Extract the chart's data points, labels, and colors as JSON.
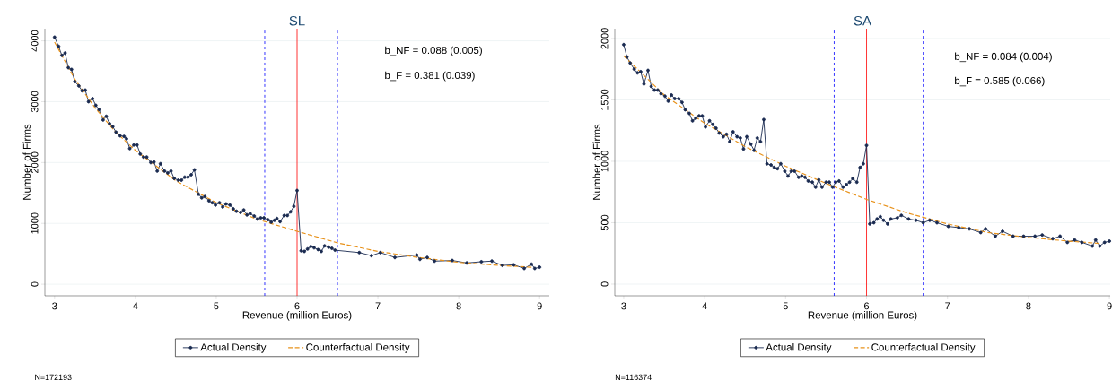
{
  "chart_data": [
    {
      "type": "line",
      "title": "SL",
      "xlabel": "Revenue (million Euros)",
      "ylabel": "Number of Firms",
      "xlim": [
        2.88,
        9.12
      ],
      "ylim": [
        -190,
        4200
      ],
      "xticks": [
        3,
        4,
        5,
        6,
        7,
        8,
        9
      ],
      "yticks": [
        0,
        1000,
        2000,
        3000,
        4000
      ],
      "grid": "y",
      "legend": "bottom",
      "series": [
        {
          "name": "Actual Density",
          "color": "#1a2a50",
          "marker": "circle",
          "line_style": "solid",
          "x": [
            3.0,
            3.05,
            3.09,
            3.13,
            3.17,
            3.21,
            3.25,
            3.3,
            3.34,
            3.38,
            3.42,
            3.47,
            3.51,
            3.55,
            3.6,
            3.64,
            3.68,
            3.72,
            3.76,
            3.81,
            3.86,
            3.89,
            3.93,
            3.98,
            4.02,
            4.06,
            4.1,
            4.14,
            4.19,
            4.23,
            4.27,
            4.31,
            4.36,
            4.4,
            4.44,
            4.48,
            4.53,
            4.57,
            4.61,
            4.65,
            4.69,
            4.73,
            4.78,
            4.82,
            4.86,
            4.91,
            4.95,
            4.99,
            5.04,
            5.08,
            5.12,
            5.17,
            5.21,
            5.25,
            5.3,
            5.34,
            5.38,
            5.42,
            5.47,
            5.51,
            5.55,
            5.59,
            5.64,
            5.68,
            5.72,
            5.75,
            5.79,
            5.84,
            5.88,
            5.92,
            5.96,
            6.0,
            6.05,
            6.09,
            6.13,
            6.17,
            6.21,
            6.26,
            6.3,
            6.34,
            6.39,
            6.43,
            6.47,
            6.77,
            6.92,
            7.03,
            7.21,
            7.48,
            7.52,
            7.61,
            7.7,
            7.92,
            8.1,
            8.28,
            8.41,
            8.54,
            8.68,
            8.81,
            8.9,
            8.94,
            9.0
          ],
          "values": [
            4060,
            3910,
            3760,
            3800,
            3560,
            3530,
            3330,
            3260,
            3180,
            3190,
            3000,
            3050,
            2940,
            2870,
            2700,
            2760,
            2640,
            2590,
            2500,
            2440,
            2430,
            2390,
            2230,
            2290,
            2290,
            2140,
            2090,
            2090,
            2000,
            2010,
            1860,
            1980,
            1860,
            1830,
            1860,
            1740,
            1710,
            1710,
            1760,
            1760,
            1800,
            1880,
            1480,
            1420,
            1440,
            1370,
            1340,
            1300,
            1340,
            1270,
            1320,
            1300,
            1240,
            1200,
            1180,
            1220,
            1140,
            1160,
            1120,
            1070,
            1090,
            1090,
            1060,
            1020,
            1050,
            1080,
            1030,
            1130,
            1130,
            1190,
            1280,
            1540,
            550,
            540,
            580,
            620,
            600,
            570,
            540,
            630,
            610,
            590,
            560,
            520,
            470,
            520,
            440,
            480,
            410,
            440,
            380,
            390,
            350,
            370,
            380,
            310,
            320,
            260,
            330,
            260,
            280
          ]
        },
        {
          "name": "Counterfactual Density",
          "color": "#e8921b",
          "marker": "none",
          "line_style": "dashed",
          "x": [
            3.0,
            3.25,
            3.5,
            3.75,
            4.0,
            4.5,
            5.0,
            5.5,
            6.0,
            6.5,
            7.0,
            7.5,
            8.0,
            8.5,
            8.9
          ],
          "values": [
            3980,
            3370,
            2900,
            2510,
            2200,
            1700,
            1340,
            1070,
            870,
            680,
            540,
            440,
            360,
            310,
            280
          ]
        }
      ],
      "ref_lines": [
        {
          "axis": "x",
          "value": 6,
          "color": "#ff0000",
          "line_style": "solid"
        },
        {
          "axis": "x",
          "value": 5.6,
          "color": "#0000ff",
          "line_style": "dashed"
        },
        {
          "axis": "x",
          "value": 6.5,
          "color": "#0000ff",
          "line_style": "dashed"
        }
      ],
      "annotations": [
        "b_NF = 0.088 (0.005)",
        "b_F  = 0.381 (0.039)",
        "N=172193"
      ]
    },
    {
      "type": "line",
      "title": "SA",
      "xlabel": "Revenue (million Euros)",
      "ylabel": "Number of Firms",
      "xlim": [
        2.89,
        9.01
      ],
      "ylim": [
        -95,
        2080
      ],
      "xticks": [
        3,
        4,
        5,
        6,
        7,
        8,
        9
      ],
      "yticks": [
        0,
        500,
        1000,
        1500,
        2000
      ],
      "grid": "y",
      "legend": "bottom",
      "series": [
        {
          "name": "Actual Density",
          "color": "#1a2a50",
          "marker": "circle",
          "line_style": "solid",
          "x": [
            3.0,
            3.04,
            3.08,
            3.13,
            3.17,
            3.21,
            3.25,
            3.3,
            3.34,
            3.38,
            3.42,
            3.46,
            3.51,
            3.55,
            3.59,
            3.63,
            3.68,
            3.72,
            3.76,
            3.81,
            3.85,
            3.89,
            3.93,
            3.97,
            4.01,
            4.06,
            4.1,
            4.14,
            4.18,
            4.23,
            4.27,
            4.31,
            4.35,
            4.4,
            4.44,
            4.48,
            4.52,
            4.57,
            4.61,
            4.65,
            4.69,
            4.73,
            4.77,
            4.82,
            4.86,
            4.9,
            4.94,
            4.99,
            5.03,
            5.07,
            5.11,
            5.16,
            5.2,
            5.24,
            5.28,
            5.33,
            5.37,
            5.41,
            5.45,
            5.5,
            5.54,
            5.58,
            5.62,
            5.66,
            5.71,
            5.75,
            5.79,
            5.83,
            5.88,
            5.92,
            5.96,
            6.0,
            6.04,
            6.09,
            6.13,
            6.17,
            6.21,
            6.26,
            6.3,
            6.38,
            6.43,
            6.52,
            6.61,
            6.7,
            6.78,
            6.87,
            7.01,
            7.14,
            7.27,
            7.41,
            7.47,
            7.59,
            7.68,
            7.81,
            7.94,
            8.08,
            8.17,
            8.3,
            8.39,
            8.48,
            8.57,
            8.66,
            8.79,
            8.83,
            8.88,
            8.94,
            9.0
          ],
          "values": [
            1950,
            1850,
            1800,
            1750,
            1720,
            1730,
            1630,
            1740,
            1610,
            1580,
            1580,
            1550,
            1530,
            1490,
            1540,
            1510,
            1510,
            1480,
            1420,
            1390,
            1330,
            1350,
            1370,
            1370,
            1280,
            1330,
            1300,
            1270,
            1230,
            1200,
            1220,
            1160,
            1240,
            1200,
            1190,
            1100,
            1200,
            1140,
            1090,
            1190,
            1160,
            1340,
            980,
            970,
            950,
            940,
            980,
            920,
            880,
            920,
            920,
            870,
            880,
            870,
            840,
            830,
            790,
            850,
            790,
            830,
            830,
            790,
            830,
            840,
            790,
            810,
            830,
            860,
            830,
            950,
            980,
            1130,
            490,
            500,
            530,
            550,
            520,
            490,
            530,
            540,
            560,
            530,
            520,
            500,
            520,
            500,
            470,
            460,
            450,
            420,
            450,
            390,
            430,
            390,
            390,
            390,
            400,
            370,
            390,
            340,
            360,
            340,
            310,
            360,
            310,
            340,
            350
          ]
        },
        {
          "name": "Counterfactual Density",
          "color": "#e8921b",
          "marker": "none",
          "line_style": "dashed",
          "x": [
            3.0,
            3.5,
            4.0,
            4.5,
            5.0,
            5.5,
            6.0,
            6.5,
            7.0,
            7.5,
            8.0,
            8.5,
            8.9
          ],
          "values": [
            1859,
            1540,
            1310,
            1120,
            960,
            820,
            690,
            580,
            490,
            420,
            380,
            350,
            330
          ]
        }
      ],
      "ref_lines": [
        {
          "axis": "x",
          "value": 6,
          "color": "#ff0000",
          "line_style": "solid"
        },
        {
          "axis": "x",
          "value": 5.6,
          "color": "#0000ff",
          "line_style": "dashed"
        },
        {
          "axis": "x",
          "value": 6.7,
          "color": "#0000ff",
          "line_style": "dashed"
        }
      ],
      "annotations": [
        "b_NF = 0.084 (0.004)",
        "b_F  = 0.585 (0.066)",
        "N=116374"
      ]
    }
  ]
}
